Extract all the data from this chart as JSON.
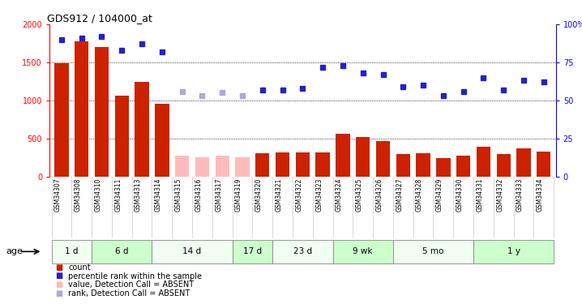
{
  "title": "GDS912 / 104000_at",
  "gsm_labels": [
    "GSM34307",
    "GSM34308",
    "GSM34310",
    "GSM34311",
    "GSM34313",
    "GSM34314",
    "GSM34315",
    "GSM34316",
    "GSM34317",
    "GSM34319",
    "GSM34320",
    "GSM34321",
    "GSM34322",
    "GSM34323",
    "GSM34324",
    "GSM34325",
    "GSM34326",
    "GSM34327",
    "GSM34328",
    "GSM34329",
    "GSM34330",
    "GSM34331",
    "GSM34332",
    "GSM34333",
    "GSM34334"
  ],
  "bar_values": [
    1490,
    1780,
    1700,
    1060,
    1240,
    960,
    270,
    250,
    270,
    255,
    300,
    310,
    310,
    310,
    560,
    520,
    460,
    295,
    305,
    245,
    270,
    390,
    290,
    370,
    325
  ],
  "absent_bars": [
    false,
    false,
    false,
    false,
    false,
    false,
    true,
    true,
    true,
    true,
    false,
    false,
    false,
    false,
    false,
    false,
    false,
    false,
    false,
    false,
    false,
    false,
    false,
    false,
    false
  ],
  "rank_values": [
    90,
    91,
    92,
    83,
    87,
    82,
    56,
    53,
    55,
    53,
    57,
    57,
    58,
    72,
    73,
    68,
    67,
    59,
    60,
    53,
    56,
    65,
    57,
    63,
    62
  ],
  "absent_rank": [
    false,
    false,
    false,
    false,
    false,
    false,
    true,
    true,
    true,
    true,
    false,
    false,
    false,
    false,
    false,
    false,
    false,
    false,
    false,
    false,
    false,
    false,
    false,
    false,
    false
  ],
  "age_groups": [
    {
      "label": "1 d",
      "start": 0,
      "end": 2
    },
    {
      "label": "6 d",
      "start": 2,
      "end": 5
    },
    {
      "label": "14 d",
      "start": 5,
      "end": 9
    },
    {
      "label": "17 d",
      "start": 9,
      "end": 11
    },
    {
      "label": "23 d",
      "start": 11,
      "end": 14
    },
    {
      "label": "9 wk",
      "start": 14,
      "end": 17
    },
    {
      "label": "5 mo",
      "start": 17,
      "end": 21
    },
    {
      "label": "1 y",
      "start": 21,
      "end": 25
    }
  ],
  "bar_color_present": "#cc2200",
  "bar_color_absent": "#ffbbbb",
  "rank_color_present": "#2222cc",
  "rank_color_absent": "#aaaadd",
  "ylim_left": [
    0,
    2000
  ],
  "ylim_right": [
    0,
    100
  ],
  "yticks_left": [
    0,
    500,
    1000,
    1500,
    2000
  ],
  "yticks_right": [
    0,
    25,
    50,
    75,
    100
  ],
  "age_bg_colors": [
    "#f0fff0",
    "#ccffcc",
    "#f0fff0",
    "#ccffcc",
    "#f0fff0",
    "#ccffcc",
    "#f0fff0",
    "#ccffcc"
  ],
  "xlabel_bg": "#dddddd",
  "plot_bg": "#ffffff"
}
